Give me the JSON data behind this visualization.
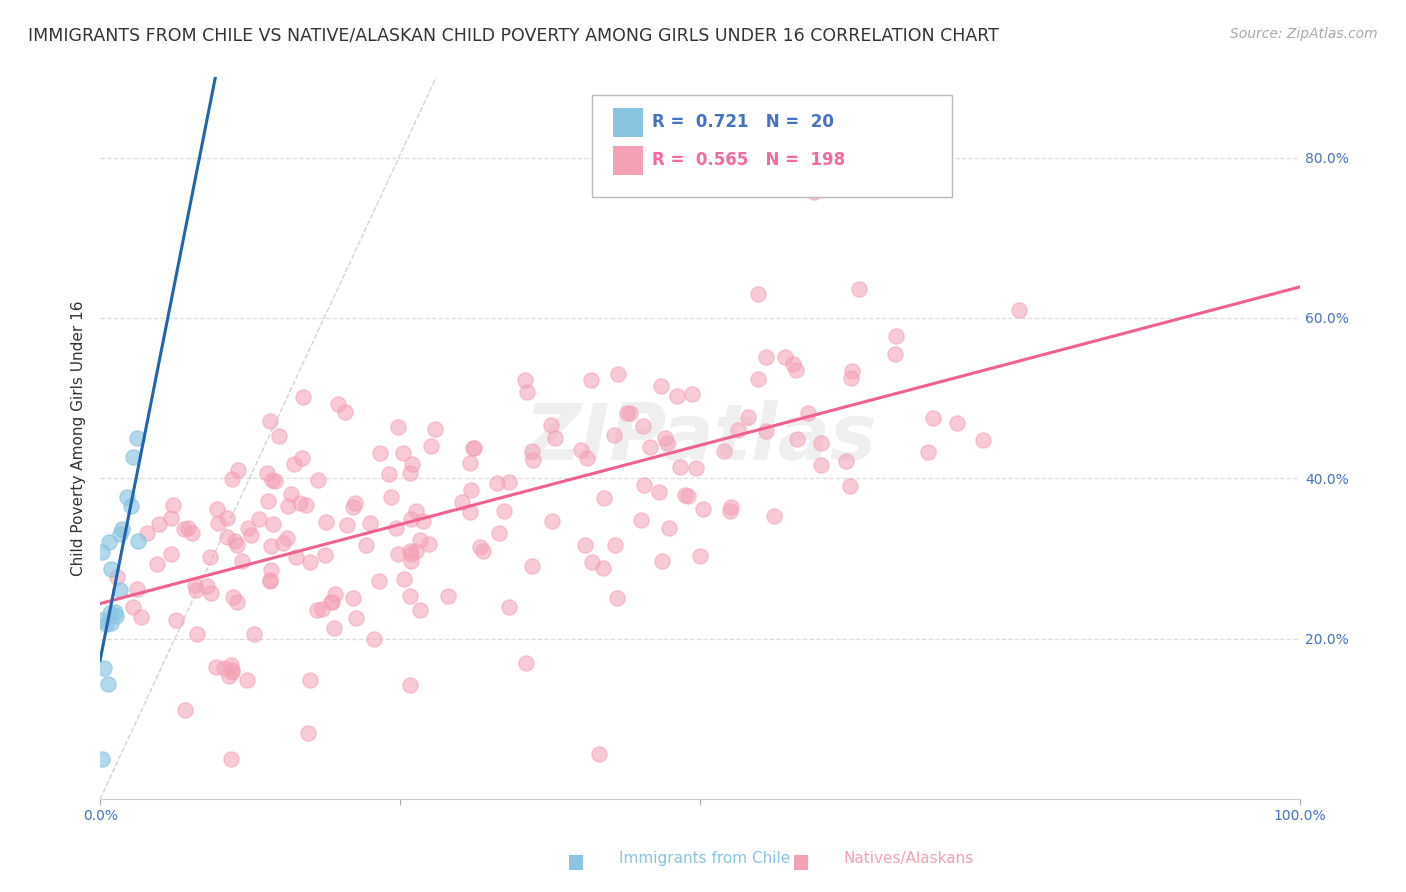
{
  "title": "IMMIGRANTS FROM CHILE VS NATIVE/ALASKAN CHILD POVERTY AMONG GIRLS UNDER 16 CORRELATION CHART",
  "source": "Source: ZipAtlas.com",
  "ylabel": "Child Poverty Among Girls Under 16",
  "watermark": "ZIPatlas",
  "chile_R": 0.721,
  "chile_N": 20,
  "native_R": 0.565,
  "native_N": 198,
  "chile_color": "#89c4e1",
  "native_color": "#f4a0b5",
  "chile_line_color": "#2166ac",
  "native_line_color": "#f06090",
  "xlim": [
    0.0,
    1.0
  ],
  "ylim": [
    0.0,
    0.9
  ],
  "yticks": [
    0.2,
    0.4,
    0.6,
    0.8
  ],
  "ytick_labels": [
    "20.0%",
    "40.0%",
    "60.0%",
    "80.0%"
  ],
  "xticks": [
    0.0,
    0.25,
    0.5,
    1.0
  ],
  "xtick_labels": [
    "0.0%",
    "",
    "",
    "100.0%"
  ],
  "background_color": "#ffffff",
  "grid_color": "#dddddd",
  "title_fontsize": 12.5,
  "source_fontsize": 10,
  "label_fontsize": 11,
  "tick_fontsize": 10,
  "legend_fontsize": 12,
  "tick_color": "#4472c4",
  "legend_R1": "R =  0.721   N =  20",
  "legend_R2": "R =  0.565   N =  198",
  "legend_color1": "#4472c4",
  "legend_color2": "#f768a1",
  "bottom_label1": "Immigrants from Chile",
  "bottom_label2": "Natives/Alaskans"
}
